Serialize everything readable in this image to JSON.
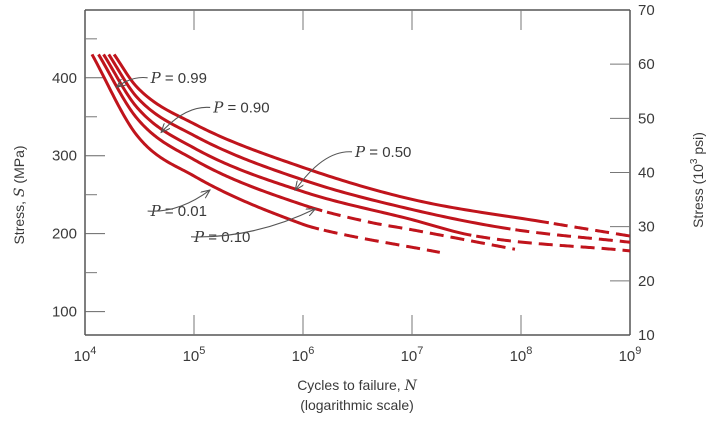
{
  "chart_data": {
    "type": "line",
    "title": "",
    "xlabel": "Cycles to failure, N",
    "xlabel_sub": "(logarithmic scale)",
    "xlabel_parts": {
      "text": "Cycles to failure, ",
      "symbol": "N"
    },
    "xscale": "log",
    "xlim": [
      10000,
      1000000000
    ],
    "x_ticks": [
      {
        "value": 10000,
        "base": "10",
        "exp": "4"
      },
      {
        "value": 100000,
        "base": "10",
        "exp": "5"
      },
      {
        "value": 1000000,
        "base": "10",
        "exp": "6"
      },
      {
        "value": 10000000,
        "base": "10",
        "exp": "7"
      },
      {
        "value": 100000000,
        "base": "10",
        "exp": "8"
      },
      {
        "value": 1000000000,
        "base": "10",
        "exp": "9"
      }
    ],
    "ylabel": "Stress, S (MPa)",
    "ylabel_parts": {
      "text": "Stress, ",
      "symbol": "S",
      "unit": " (MPa)"
    },
    "ylim": [
      70,
      487
    ],
    "y_ticks_major": [
      100,
      200,
      300,
      400
    ],
    "y_ticks_minor": [
      150,
      250,
      350,
      450
    ],
    "y2label": "Stress (10^3 psi)",
    "y2label_parts": {
      "pre": "Stress (10",
      "sup": "3",
      "post": " psi)"
    },
    "y2lim": [
      10,
      70
    ],
    "y2_ticks": [
      10,
      20,
      30,
      40,
      50,
      60,
      70
    ],
    "grid": false,
    "line_color": "#c0141c",
    "series": [
      {
        "name": "P = 0.99",
        "label_symbol": "P",
        "label_value": "= 0.99",
        "x": [
          18500,
          30000,
          100000,
          1000000,
          10000000,
          180000000,
          1000000000
        ],
        "y": [
          430,
          388,
          341,
          285,
          244,
          214,
          197
        ],
        "dashed_from": 180000000
      },
      {
        "name": "P = 0.90",
        "label_symbol": "P",
        "label_value": "= 0.90",
        "x": [
          16500,
          30000,
          100000,
          1000000,
          10000000,
          80000000,
          1000000000
        ],
        "y": [
          430,
          375,
          326,
          269,
          231,
          206,
          189
        ],
        "dashed_from": 80000000
      },
      {
        "name": "P = 0.50",
        "label_symbol": "P",
        "label_value": "= 0.50",
        "x": [
          14800,
          30000,
          100000,
          1000000,
          10000000,
          35000000,
          1000000000
        ],
        "y": [
          430,
          362,
          310,
          254,
          218,
          198,
          178
        ],
        "dashed_from": 35000000
      },
      {
        "name": "P = 0.10",
        "label_symbol": "P",
        "label_value": "= 0.10",
        "x": [
          13300,
          30000,
          100000,
          1000000,
          4000000,
          10000000,
          88000000
        ],
        "y": [
          430,
          348,
          295,
          237,
          215,
          205,
          180
        ],
        "dashed_from": 1500000
      },
      {
        "name": "P = 0.01",
        "label_symbol": "P",
        "label_value": "= 0.01",
        "x": [
          11600,
          30000,
          100000,
          1000000,
          1400000,
          18000000
        ],
        "y": [
          430,
          326,
          274,
          212,
          206,
          176
        ],
        "dashed_from": 1400000
      }
    ],
    "annotations": [
      {
        "series": "P = 0.99",
        "label_at_N": 40000,
        "label_at_S": 400,
        "arrow_to_N": 19500,
        "arrow_to_S": 388
      },
      {
        "series": "P = 0.90",
        "label_at_N": 150000,
        "label_at_S": 362,
        "arrow_to_N": 50000,
        "arrow_to_S": 330
      },
      {
        "series": "P = 0.50",
        "label_at_N": 3000000,
        "label_at_S": 305,
        "arrow_to_N": 850000,
        "arrow_to_S": 256
      },
      {
        "series": "P = 0.01",
        "label_at_N": 40000,
        "label_at_S": 229,
        "arrow_to_N": 140000,
        "arrow_to_S": 256
      },
      {
        "series": "P = 0.10",
        "label_at_N": 100000,
        "label_at_S": 196,
        "arrow_to_N": 1300000,
        "arrow_to_S": 232
      }
    ]
  }
}
